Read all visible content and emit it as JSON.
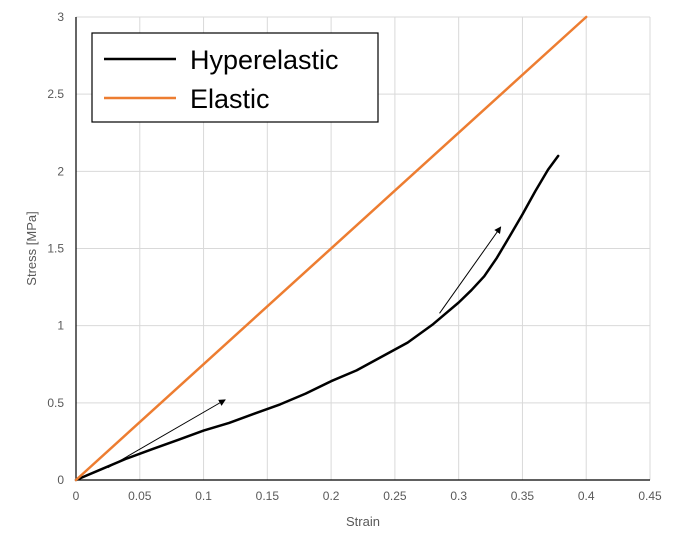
{
  "chart_data": {
    "type": "line",
    "title": "",
    "xlabel": "Strain",
    "ylabel": "Stress [MPa]",
    "xlim": [
      0,
      0.45
    ],
    "ylim": [
      0,
      3
    ],
    "x_ticks": [
      "0",
      "0.05",
      "0.1",
      "0.15",
      "0.2",
      "0.25",
      "0.3",
      "0.35",
      "0.4",
      "0.45"
    ],
    "y_ticks": [
      "0",
      "0.5",
      "1",
      "1.5",
      "2",
      "2.5",
      "3"
    ],
    "grid": true,
    "legend_position": "top-left",
    "series": [
      {
        "name": "Hyperelastic",
        "color": "#000000",
        "x": [
          0,
          0.02,
          0.04,
          0.06,
          0.08,
          0.1,
          0.12,
          0.14,
          0.16,
          0.18,
          0.2,
          0.22,
          0.24,
          0.26,
          0.28,
          0.29,
          0.3,
          0.31,
          0.32,
          0.33,
          0.34,
          0.35,
          0.36,
          0.37,
          0.378
        ],
        "y": [
          0,
          0.07,
          0.14,
          0.2,
          0.26,
          0.32,
          0.37,
          0.43,
          0.49,
          0.56,
          0.64,
          0.71,
          0.8,
          0.89,
          1.01,
          1.08,
          1.15,
          1.23,
          1.32,
          1.44,
          1.58,
          1.72,
          1.87,
          2.01,
          2.1
        ]
      },
      {
        "name": "Elastic",
        "color": "#ED7D31",
        "x": [
          0,
          0.4
        ],
        "y": [
          0,
          3.0
        ]
      }
    ],
    "annotations": [
      {
        "type": "arrow",
        "x1": 0.025,
        "y1": 0.08,
        "x2": 0.117,
        "y2": 0.52
      },
      {
        "type": "arrow",
        "x1": 0.285,
        "y1": 1.08,
        "x2": 0.333,
        "y2": 1.64
      }
    ]
  }
}
